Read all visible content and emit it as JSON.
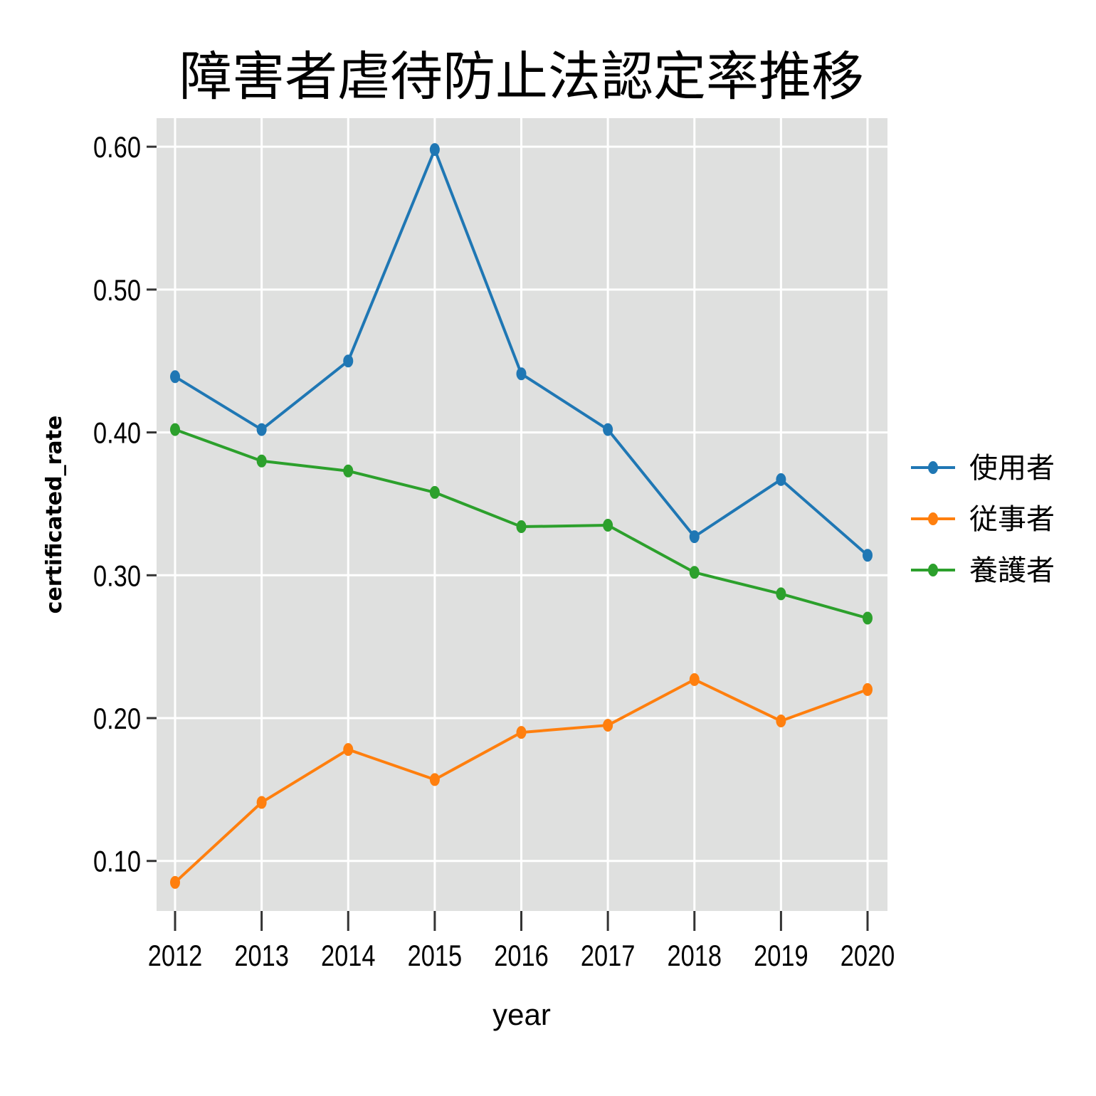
{
  "chart_data": {
    "type": "line",
    "title": "障害者虐待防止法認定率推移",
    "xlabel": "year",
    "ylabel": "certificated_rate",
    "x": [
      "2012",
      "2013",
      "2014",
      "2015",
      "2016",
      "2017",
      "2018",
      "2019",
      "2020"
    ],
    "ylim": [
      0.065,
      0.62
    ],
    "yticks": [
      0.1,
      0.2,
      0.3,
      0.4,
      0.5,
      0.6
    ],
    "ytick_labels": [
      "0.10",
      "0.20",
      "0.30",
      "0.40",
      "0.50",
      "0.60"
    ],
    "grid": true,
    "legend_position": "right",
    "series": [
      {
        "name": "使用者",
        "color": "#1f77b4",
        "values": [
          0.439,
          0.402,
          0.45,
          0.598,
          0.441,
          0.402,
          0.327,
          0.367,
          0.314
        ]
      },
      {
        "name": "従事者",
        "color": "#ff7f0e",
        "values": [
          0.085,
          0.141,
          0.178,
          0.157,
          0.19,
          0.195,
          0.227,
          0.198,
          0.22
        ]
      },
      {
        "name": "養護者",
        "color": "#2ca02c",
        "values": [
          0.402,
          0.38,
          0.373,
          0.358,
          0.334,
          0.335,
          0.302,
          0.287,
          0.27
        ]
      }
    ],
    "panel_background": "#dfe0df",
    "grid_color": "#ffffff"
  }
}
